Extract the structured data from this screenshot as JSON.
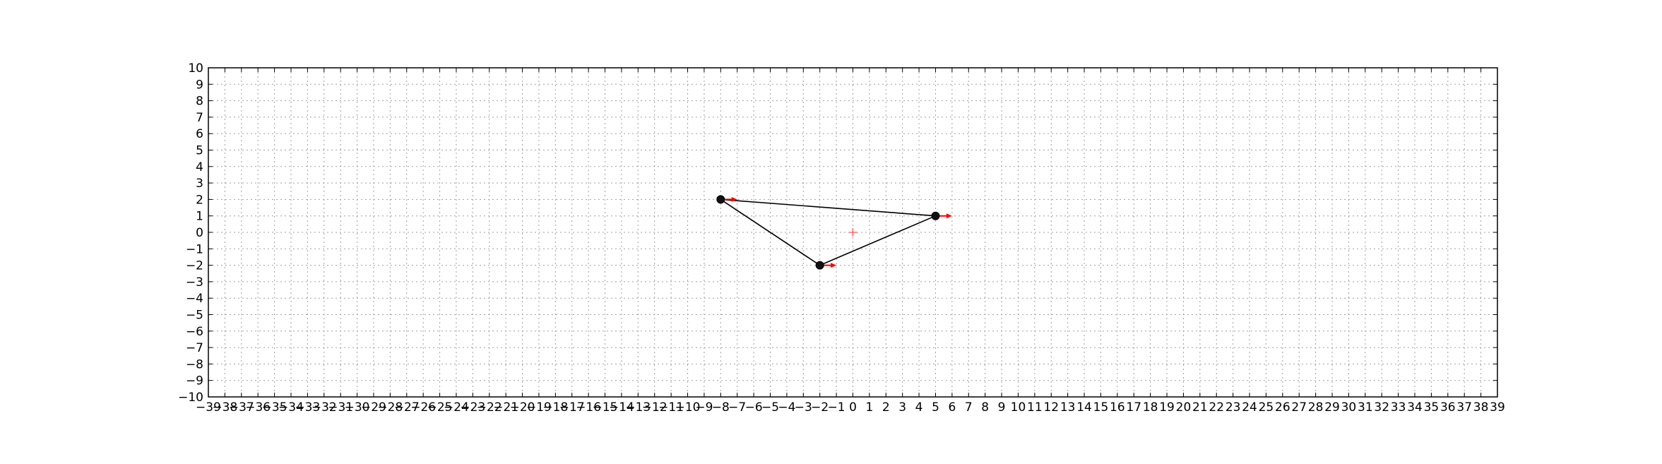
{
  "chart_data": {
    "type": "scatter",
    "xlim": [
      -39,
      39
    ],
    "ylim": [
      -10,
      10
    ],
    "x_ticks": [
      -39,
      -38,
      -37,
      -36,
      -35,
      -34,
      -33,
      -32,
      -31,
      -30,
      -29,
      -28,
      -27,
      -26,
      -25,
      -24,
      -23,
      -22,
      -21,
      -20,
      -19,
      -18,
      -17,
      -16,
      -15,
      -14,
      -13,
      -12,
      -11,
      -10,
      -9,
      -8,
      -7,
      -6,
      -5,
      -4,
      -3,
      -2,
      -1,
      0,
      1,
      2,
      3,
      4,
      5,
      6,
      7,
      8,
      9,
      10,
      11,
      12,
      13,
      14,
      15,
      16,
      17,
      18,
      19,
      20,
      21,
      22,
      23,
      24,
      25,
      26,
      27,
      28,
      29,
      30,
      31,
      32,
      33,
      34,
      35,
      36,
      37,
      38,
      39
    ],
    "y_ticks": [
      -10,
      -9,
      -8,
      -7,
      -6,
      -5,
      -4,
      -3,
      -2,
      -1,
      0,
      1,
      2,
      3,
      4,
      5,
      6,
      7,
      8,
      9,
      10
    ],
    "grid": true,
    "points": [
      {
        "x": -8,
        "y": 2
      },
      {
        "x": 5,
        "y": 1
      },
      {
        "x": -2,
        "y": -2
      }
    ],
    "edges": [
      [
        0,
        1
      ],
      [
        1,
        2
      ],
      [
        2,
        0
      ]
    ],
    "velocity_arrows": [
      {
        "x": -8,
        "y": 2,
        "dx": 1,
        "dy": 0
      },
      {
        "x": 5,
        "y": 1,
        "dx": 1,
        "dy": 0
      },
      {
        "x": -2,
        "y": -2,
        "dx": 1,
        "dy": 0
      }
    ],
    "center_marker": {
      "x": 0,
      "y": 0
    },
    "colors": {
      "points": "#000000",
      "edges": "#000000",
      "arrows": "#ff0000",
      "center_marker": "#ff0000",
      "grid": "#a0a0a0"
    }
  }
}
